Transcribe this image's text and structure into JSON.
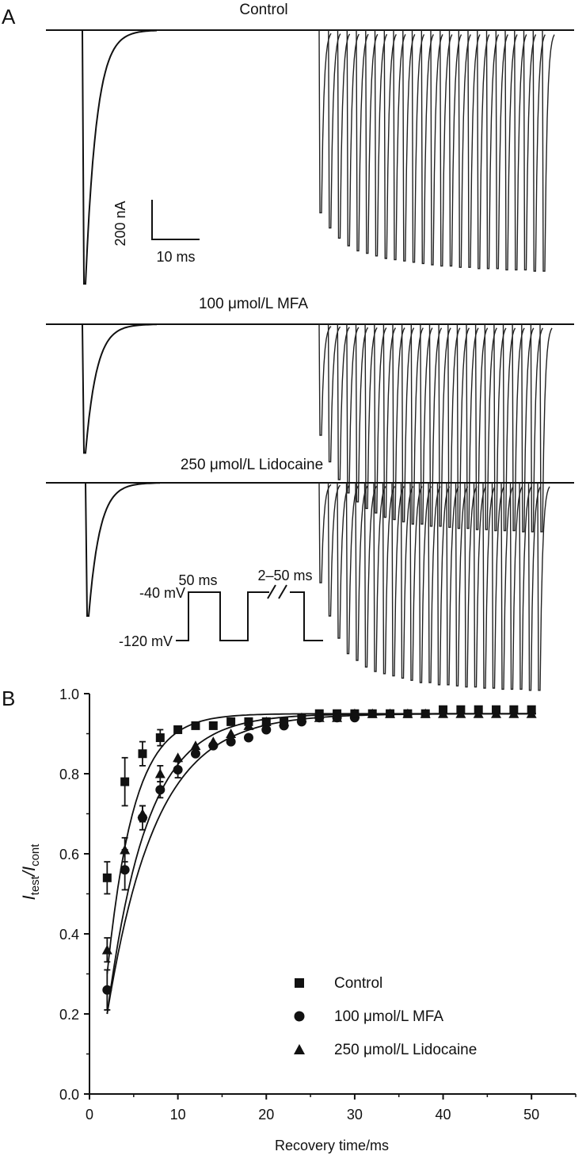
{
  "panels": {
    "a_label": "A",
    "b_label": "B"
  },
  "traces": {
    "titles": [
      "Control",
      "100 μmol/L MFA",
      "250 μmol/L Lidocaine"
    ],
    "conditioning_peaks": [
      1.0,
      0.58,
      0.6
    ],
    "test_peaks": [
      [
        0.72,
        0.78,
        0.82,
        0.85,
        0.87,
        0.88,
        0.89,
        0.9,
        0.905,
        0.91,
        0.915,
        0.92,
        0.925,
        0.93,
        0.93,
        0.935,
        0.935,
        0.94,
        0.94,
        0.94,
        0.945,
        0.945,
        0.945,
        0.95,
        0.95
      ],
      [
        0.5,
        0.62,
        0.7,
        0.76,
        0.8,
        0.83,
        0.85,
        0.87,
        0.88,
        0.89,
        0.9,
        0.9,
        0.91,
        0.91,
        0.915,
        0.92,
        0.92,
        0.925,
        0.925,
        0.93,
        0.93,
        0.93,
        0.935,
        0.935,
        0.935
      ],
      [
        0.45,
        0.6,
        0.7,
        0.77,
        0.8,
        0.83,
        0.85,
        0.86,
        0.87,
        0.88,
        0.89,
        0.9,
        0.9,
        0.91,
        0.91,
        0.915,
        0.92,
        0.92,
        0.925,
        0.925,
        0.93,
        0.93,
        0.93,
        0.935,
        0.935
      ]
    ],
    "scale_bar": {
      "current_label": "200 nA",
      "time_label": "10 ms"
    },
    "protocol": {
      "v_hold_label": "-120 mV",
      "v_step_label": "-40 mV",
      "pulse_label": "50 ms",
      "interval_label": "2–50 ms"
    }
  },
  "chart_data": {
    "type": "scatter",
    "xlabel": "Recovery time/ms",
    "ylabel_main": "I",
    "ylabel_sub_test": "test",
    "ylabel_slash": "/I",
    "ylabel_sub_cont": "cont",
    "xlim": [
      0,
      55
    ],
    "ylim": [
      0,
      1.0
    ],
    "xticks": [
      0,
      10,
      20,
      30,
      40,
      50
    ],
    "yticks": [
      "0.0",
      "0.2",
      "0.4",
      "0.6",
      "0.8",
      "1.0"
    ],
    "legend_position": "bottom-right",
    "series": [
      {
        "name": "Control",
        "marker": "square",
        "x": [
          2,
          4,
          6,
          8,
          10,
          12,
          14,
          16,
          18,
          20,
          22,
          24,
          26,
          28,
          30,
          32,
          34,
          36,
          38,
          40,
          42,
          44,
          46,
          48,
          50
        ],
        "y": [
          0.54,
          0.78,
          0.85,
          0.89,
          0.91,
          0.92,
          0.92,
          0.93,
          0.93,
          0.93,
          0.93,
          0.94,
          0.95,
          0.95,
          0.95,
          0.95,
          0.95,
          0.95,
          0.95,
          0.96,
          0.96,
          0.96,
          0.96,
          0.96,
          0.96
        ],
        "err": [
          0.04,
          0.06,
          0.03,
          0.02,
          0.01,
          0.01,
          0.01,
          0.01,
          0.01,
          0.01,
          0.01,
          0.01,
          0.01,
          0.01,
          0.01,
          0.01,
          0.01,
          0.01,
          0.01,
          0.01,
          0.01,
          0.01,
          0.01,
          0.01,
          0.01
        ]
      },
      {
        "name": "100 μmol/L MFA",
        "marker": "circle",
        "x": [
          2,
          4,
          6,
          8,
          10,
          12,
          14,
          16,
          18,
          20,
          22,
          24,
          26,
          28,
          30
        ],
        "y": [
          0.26,
          0.56,
          0.69,
          0.76,
          0.81,
          0.85,
          0.87,
          0.88,
          0.89,
          0.91,
          0.92,
          0.93,
          0.94,
          0.94,
          0.94
        ],
        "err": [
          0.05,
          0.05,
          0.03,
          0.02,
          0.02,
          0.01,
          0.01,
          0.01,
          0.01,
          0.01,
          0.01,
          0.01,
          0.01,
          0.01,
          0.01
        ]
      },
      {
        "name": "250 μmol/L Lidocaine",
        "marker": "triangle",
        "x": [
          2,
          4,
          6,
          8,
          10,
          12,
          14,
          16,
          18,
          20,
          22,
          24,
          26,
          28,
          30,
          32,
          34,
          36,
          38,
          40,
          42,
          44,
          46,
          48,
          50
        ],
        "y": [
          0.36,
          0.61,
          0.7,
          0.8,
          0.84,
          0.87,
          0.88,
          0.9,
          0.92,
          0.93,
          0.93,
          0.94,
          0.94,
          0.94,
          0.95,
          0.95,
          0.95,
          0.95,
          0.95,
          0.95,
          0.95,
          0.95,
          0.95,
          0.95,
          0.95
        ],
        "err": [
          0.03,
          0.03,
          0.02,
          0.02,
          0.01,
          0.01,
          0.01,
          0.01,
          0.01,
          0.01,
          0.01,
          0.01,
          0.01,
          0.01,
          0.01,
          0.01,
          0.01,
          0.01,
          0.01,
          0.01,
          0.01,
          0.01,
          0.01,
          0.01,
          0.01
        ]
      }
    ],
    "fits": [
      {
        "series": "Control",
        "plateau": 0.95,
        "tau": 3.0,
        "offset": 0.3
      },
      {
        "series": "100 μmol/L MFA",
        "plateau": 0.95,
        "tau": 5.5,
        "offset": 0.2
      },
      {
        "series": "250 μmol/L Lidocaine",
        "plateau": 0.95,
        "tau": 4.5,
        "offset": 0.2
      }
    ]
  }
}
